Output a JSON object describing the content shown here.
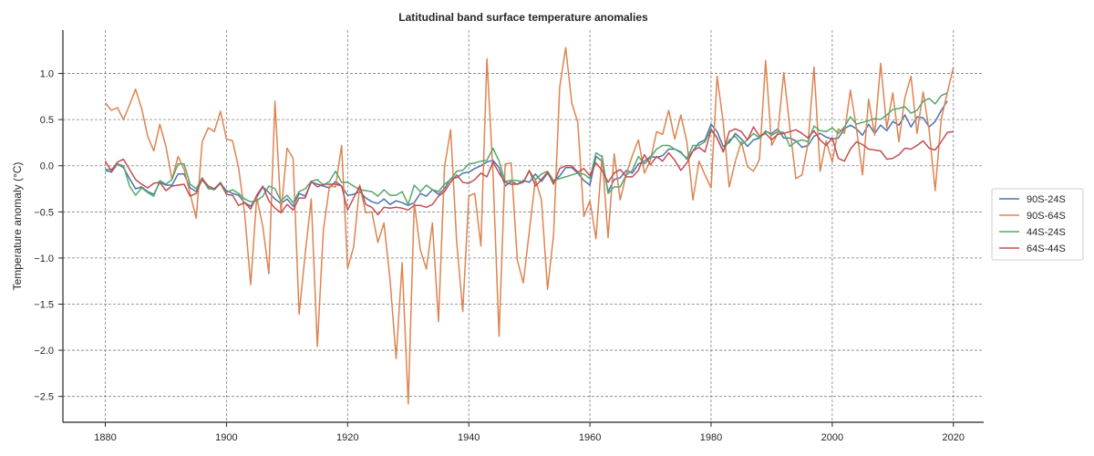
{
  "chart_data": {
    "type": "line",
    "title": "Latitudinal band surface temperature anomalies",
    "xlabel": "",
    "ylabel": "Temperature anomaly (°C)",
    "xlim": [
      1873,
      2025
    ],
    "ylim": [
      -2.78,
      1.47
    ],
    "xticks": [
      1880,
      1900,
      1920,
      1940,
      1960,
      1980,
      2000,
      2020
    ],
    "yticks": [
      1.0,
      0.5,
      0.0,
      -0.5,
      -1.0,
      -1.5,
      -2.0,
      -2.5
    ],
    "ytick_labels": [
      "1.0",
      "0.5",
      "0.0",
      "−0.5",
      "−1.0",
      "−1.5",
      "−2.0",
      "−2.5"
    ],
    "grid": true,
    "legend_position": "outside-right",
    "x_start": 1880,
    "series": [
      {
        "name": "90S-24S",
        "color": "#4c72b0",
        "values": [
          -0.05,
          -0.07,
          0.02,
          -0.02,
          -0.14,
          -0.25,
          -0.23,
          -0.28,
          -0.31,
          -0.18,
          -0.21,
          -0.21,
          -0.09,
          -0.09,
          -0.24,
          -0.28,
          -0.15,
          -0.24,
          -0.26,
          -0.19,
          -0.27,
          -0.3,
          -0.32,
          -0.4,
          -0.44,
          -0.34,
          -0.23,
          -0.29,
          -0.36,
          -0.41,
          -0.36,
          -0.44,
          -0.3,
          -0.33,
          -0.18,
          -0.2,
          -0.22,
          -0.24,
          -0.17,
          -0.22,
          -0.32,
          -0.31,
          -0.28,
          -0.35,
          -0.39,
          -0.41,
          -0.36,
          -0.42,
          -0.38,
          -0.4,
          -0.43,
          -0.4,
          -0.3,
          -0.33,
          -0.26,
          -0.31,
          -0.25,
          -0.14,
          -0.13,
          -0.08,
          -0.07,
          -0.03,
          0.0,
          0.04,
          0.06,
          -0.02,
          -0.22,
          -0.17,
          -0.2,
          -0.16,
          -0.18,
          -0.09,
          -0.17,
          -0.08,
          -0.17,
          -0.11,
          -0.02,
          -0.02,
          -0.08,
          -0.16,
          -0.21,
          0.1,
          0.05,
          -0.28,
          -0.15,
          -0.13,
          -0.05,
          -0.08,
          0.02,
          0.05,
          0.1,
          0.09,
          0.11,
          0.18,
          0.18,
          0.15,
          0.07,
          0.16,
          0.25,
          0.28,
          0.45,
          0.37,
          0.21,
          0.25,
          0.35,
          0.29,
          0.21,
          0.28,
          0.3,
          0.37,
          0.35,
          0.4,
          0.3,
          0.3,
          0.27,
          0.2,
          0.22,
          0.32,
          0.35,
          0.31,
          0.29,
          0.3,
          0.4,
          0.44,
          0.4,
          0.33,
          0.45,
          0.35,
          0.44,
          0.38,
          0.48,
          0.44,
          0.55,
          0.42,
          0.53,
          0.52,
          0.42,
          0.48,
          0.6,
          0.7
        ]
      },
      {
        "name": "90S-64S",
        "color": "#dd8452",
        "values": [
          0.68,
          0.6,
          0.63,
          0.5,
          0.66,
          0.83,
          0.62,
          0.32,
          0.16,
          0.45,
          0.21,
          -0.15,
          0.1,
          -0.04,
          -0.3,
          -0.57,
          0.26,
          0.41,
          0.37,
          0.59,
          0.29,
          0.27,
          -0.02,
          -0.51,
          -1.29,
          -0.34,
          -0.66,
          -1.17,
          0.7,
          -0.51,
          0.19,
          0.08,
          -1.61,
          -0.95,
          -0.36,
          -1.96,
          -0.7,
          -0.22,
          -0.23,
          0.22,
          -1.11,
          -0.88,
          -0.21,
          -0.51,
          -0.5,
          -0.83,
          -0.62,
          -1.23,
          -2.09,
          -1.05,
          -2.58,
          -0.4,
          -0.91,
          -1.12,
          -0.62,
          -1.69,
          -0.01,
          0.39,
          -0.82,
          -1.58,
          -0.33,
          -0.3,
          -0.87,
          1.16,
          -0.09,
          -1.85,
          0.02,
          0.03,
          -1.02,
          -1.27,
          -0.71,
          -0.15,
          -0.37,
          -1.34,
          -0.75,
          0.85,
          1.28,
          0.68,
          0.47,
          -0.55,
          -0.38,
          -0.79,
          0.11,
          -0.78,
          0.13,
          -0.37,
          -0.09,
          0.11,
          0.28,
          -0.08,
          0.06,
          0.37,
          0.34,
          0.6,
          0.29,
          0.55,
          0.26,
          -0.37,
          0.05,
          -0.1,
          -0.24,
          0.97,
          0.47,
          -0.23,
          0.05,
          0.26,
          -0.01,
          -0.06,
          0.07,
          1.14,
          0.22,
          0.35,
          1.01,
          0.41,
          -0.14,
          -0.1,
          0.24,
          1.07,
          -0.06,
          0.27,
          0.04,
          0.4,
          0.35,
          0.82,
          0.4,
          -0.1,
          0.72,
          0.33,
          1.11,
          0.41,
          0.79,
          0.26,
          0.74,
          0.97,
          0.35,
          0.8,
          0.38,
          -0.27,
          0.51,
          0.79,
          1.07
        ]
      },
      {
        "name": "44S-24S",
        "color": "#55a868",
        "values": [
          -0.04,
          -0.04,
          0.02,
          0.0,
          -0.22,
          -0.32,
          -0.24,
          -0.29,
          -0.33,
          -0.16,
          -0.2,
          -0.15,
          0.02,
          0.02,
          -0.2,
          -0.25,
          -0.13,
          -0.25,
          -0.25,
          -0.18,
          -0.29,
          -0.26,
          -0.3,
          -0.36,
          -0.39,
          -0.38,
          -0.33,
          -0.22,
          -0.25,
          -0.38,
          -0.32,
          -0.4,
          -0.28,
          -0.25,
          -0.17,
          -0.15,
          -0.21,
          -0.17,
          -0.06,
          -0.18,
          -0.18,
          -0.22,
          -0.26,
          -0.27,
          -0.28,
          -0.33,
          -0.26,
          -0.32,
          -0.32,
          -0.28,
          -0.42,
          -0.21,
          -0.28,
          -0.21,
          -0.26,
          -0.28,
          -0.2,
          -0.15,
          -0.06,
          -0.05,
          0.02,
          0.03,
          0.05,
          0.06,
          0.19,
          0.05,
          -0.17,
          -0.16,
          -0.16,
          -0.18,
          -0.06,
          -0.15,
          -0.09,
          -0.06,
          -0.16,
          -0.14,
          -0.12,
          -0.1,
          -0.08,
          -0.09,
          -0.14,
          0.14,
          0.1,
          -0.3,
          -0.23,
          -0.23,
          -0.1,
          -0.05,
          0.1,
          0.02,
          0.09,
          0.18,
          0.22,
          0.22,
          0.18,
          0.14,
          0.08,
          0.22,
          0.22,
          0.26,
          0.4,
          0.3,
          0.16,
          0.28,
          0.32,
          0.23,
          0.28,
          0.35,
          0.3,
          0.38,
          0.33,
          0.37,
          0.36,
          0.21,
          0.26,
          0.28,
          0.26,
          0.43,
          0.38,
          0.37,
          0.41,
          0.35,
          0.42,
          0.53,
          0.45,
          0.47,
          0.49,
          0.51,
          0.5,
          0.55,
          0.61,
          0.62,
          0.64,
          0.57,
          0.6,
          0.7,
          0.73,
          0.67,
          0.76,
          0.79
        ]
      },
      {
        "name": "64S-44S",
        "color": "#c44e52",
        "values": [
          0.05,
          -0.06,
          0.04,
          0.07,
          -0.04,
          -0.15,
          -0.2,
          -0.24,
          -0.19,
          -0.18,
          -0.27,
          -0.22,
          -0.21,
          -0.2,
          -0.33,
          -0.3,
          -0.14,
          -0.22,
          -0.25,
          -0.19,
          -0.31,
          -0.32,
          -0.43,
          -0.4,
          -0.47,
          -0.32,
          -0.22,
          -0.38,
          -0.46,
          -0.51,
          -0.42,
          -0.48,
          -0.35,
          -0.35,
          -0.17,
          -0.23,
          -0.2,
          -0.2,
          -0.2,
          -0.22,
          -0.48,
          -0.35,
          -0.22,
          -0.42,
          -0.45,
          -0.53,
          -0.45,
          -0.46,
          -0.45,
          -0.46,
          -0.48,
          -0.43,
          -0.43,
          -0.45,
          -0.42,
          -0.33,
          -0.28,
          -0.18,
          -0.1,
          -0.18,
          -0.19,
          -0.15,
          -0.08,
          -0.12,
          0.04,
          -0.08,
          -0.18,
          -0.2,
          -0.2,
          -0.18,
          -0.05,
          -0.22,
          -0.15,
          -0.07,
          -0.2,
          -0.03,
          0.0,
          0.0,
          -0.07,
          -0.03,
          -0.11,
          0.03,
          -0.05,
          -0.18,
          -0.08,
          -0.04,
          -0.12,
          -0.12,
          -0.05,
          0.12,
          0.01,
          0.1,
          0.05,
          0.14,
          0.06,
          -0.05,
          0.03,
          0.16,
          0.2,
          0.15,
          0.39,
          0.3,
          0.15,
          0.37,
          0.4,
          0.37,
          0.28,
          0.42,
          0.32,
          0.35,
          0.28,
          0.34,
          0.35,
          0.37,
          0.39,
          0.35,
          0.3,
          0.38,
          0.28,
          0.22,
          0.3,
          0.08,
          0.05,
          0.18,
          0.26,
          0.23,
          0.18,
          0.17,
          0.16,
          0.07,
          0.08,
          0.12,
          0.19,
          0.18,
          0.22,
          0.27,
          0.19,
          0.17,
          0.26,
          0.36,
          0.37
        ]
      }
    ]
  }
}
